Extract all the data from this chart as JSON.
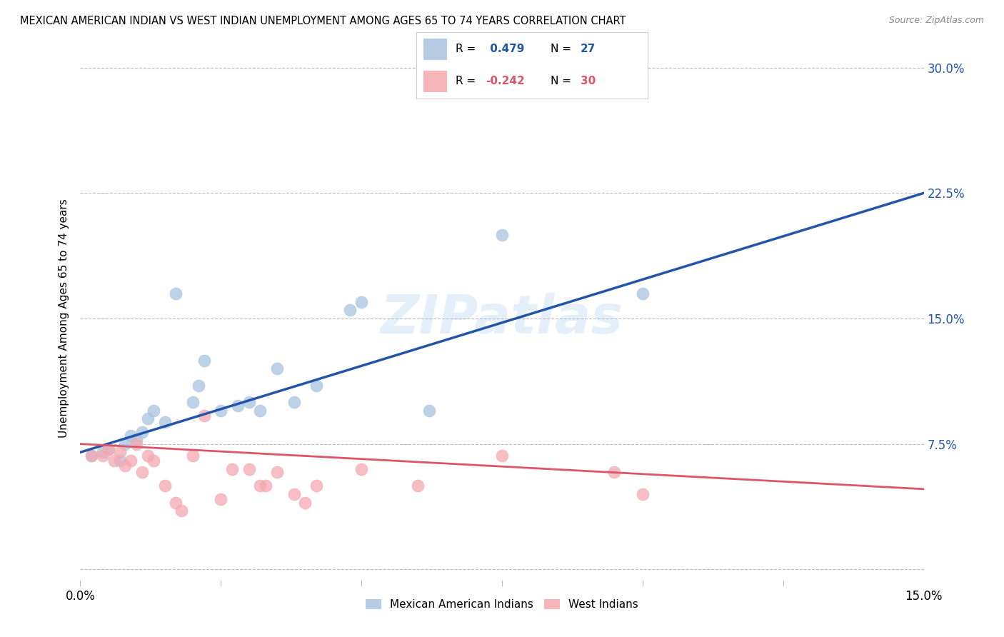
{
  "title": "MEXICAN AMERICAN INDIAN VS WEST INDIAN UNEMPLOYMENT AMONG AGES 65 TO 74 YEARS CORRELATION CHART",
  "source": "Source: ZipAtlas.com",
  "ylabel": "Unemployment Among Ages 65 to 74 years",
  "xlim": [
    0.0,
    0.15
  ],
  "ylim": [
    -0.01,
    0.31
  ],
  "xticks": [
    0.0,
    0.025,
    0.05,
    0.075,
    0.1,
    0.125,
    0.15
  ],
  "xtick_labels": [
    "0.0%",
    "",
    "",
    "",
    "",
    "",
    "15.0%"
  ],
  "yticks": [
    0.0,
    0.075,
    0.15,
    0.225,
    0.3
  ],
  "ytick_labels": [
    "",
    "7.5%",
    "15.0%",
    "22.5%",
    "30.0%"
  ],
  "blue_color": "#A8C4E0",
  "pink_color": "#F4A8B0",
  "blue_line_color": "#2255AA",
  "pink_line_color": "#DD5566",
  "watermark": "ZIPatlas",
  "blue_scatter_x": [
    0.002,
    0.004,
    0.005,
    0.007,
    0.008,
    0.009,
    0.01,
    0.011,
    0.012,
    0.013,
    0.015,
    0.017,
    0.02,
    0.021,
    0.022,
    0.025,
    0.028,
    0.03,
    0.032,
    0.035,
    0.038,
    0.042,
    0.048,
    0.05,
    0.062,
    0.075,
    0.1
  ],
  "blue_scatter_y": [
    0.068,
    0.07,
    0.072,
    0.065,
    0.075,
    0.08,
    0.078,
    0.082,
    0.09,
    0.095,
    0.088,
    0.165,
    0.1,
    0.11,
    0.125,
    0.095,
    0.098,
    0.1,
    0.095,
    0.12,
    0.1,
    0.11,
    0.155,
    0.16,
    0.095,
    0.2,
    0.165
  ],
  "pink_scatter_x": [
    0.002,
    0.004,
    0.005,
    0.006,
    0.007,
    0.008,
    0.009,
    0.01,
    0.011,
    0.012,
    0.013,
    0.015,
    0.017,
    0.018,
    0.02,
    0.022,
    0.025,
    0.027,
    0.03,
    0.032,
    0.033,
    0.035,
    0.038,
    0.04,
    0.042,
    0.05,
    0.06,
    0.075,
    0.095,
    0.1
  ],
  "pink_scatter_y": [
    0.068,
    0.068,
    0.072,
    0.065,
    0.07,
    0.062,
    0.065,
    0.075,
    0.058,
    0.068,
    0.065,
    0.05,
    0.04,
    0.035,
    0.068,
    0.092,
    0.042,
    0.06,
    0.06,
    0.05,
    0.05,
    0.058,
    0.045,
    0.04,
    0.05,
    0.06,
    0.05,
    0.068,
    0.058,
    0.045
  ],
  "blue_line_x": [
    0.0,
    0.15
  ],
  "blue_line_y": [
    0.07,
    0.225
  ],
  "pink_line_x": [
    0.0,
    0.15
  ],
  "pink_line_y": [
    0.075,
    0.048
  ],
  "marker_size": 150,
  "grid_color": "#BBBBBB",
  "bg_color": "#FFFFFF",
  "legend_blue_r": "0.479",
  "legend_blue_n": "27",
  "legend_pink_r": "-0.242",
  "legend_pink_n": "30"
}
